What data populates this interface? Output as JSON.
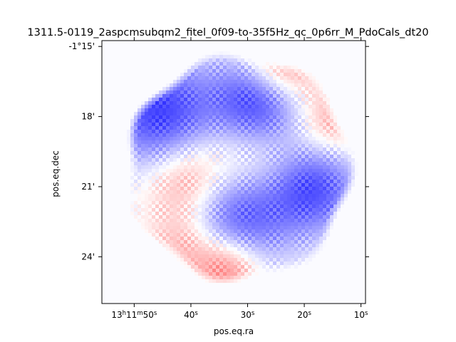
{
  "chart_data": {
    "type": "heatmap",
    "title": "1311.5-0119_2aspcmsubqm2_fitel_0f09-to-35f5Hz_qc_0p6rr_M_PdoCals_dt20",
    "xlabel": "pos.eq.ra",
    "ylabel": "pos.eq.dec",
    "x_ticks": [
      {
        "value": 50,
        "label_parts": [
          "13",
          "h",
          "11",
          "m",
          "50",
          "s"
        ]
      },
      {
        "value": 40,
        "label_parts": [
          "",
          "",
          "",
          "",
          "40",
          "s"
        ]
      },
      {
        "value": 30,
        "label_parts": [
          "",
          "",
          "",
          "",
          "30",
          "s"
        ]
      },
      {
        "value": 20,
        "label_parts": [
          "",
          "",
          "",
          "",
          "20",
          "s"
        ]
      },
      {
        "value": 10,
        "label_parts": [
          "",
          "",
          "",
          "",
          "10",
          "s"
        ]
      }
    ],
    "x_range_seconds": [
      55.7,
      9.2
    ],
    "y_ticks": [
      {
        "value": -15,
        "label": "-1°15'"
      },
      {
        "value": -18,
        "label": "18'"
      },
      {
        "value": -21,
        "label": "21'"
      },
      {
        "value": -24,
        "label": "24'"
      }
    ],
    "y_range_arcmin": [
      -14.75,
      -26.0
    ],
    "colormap": "bwr",
    "colors": {
      "positive": "#ff0000",
      "negative": "#0000ff",
      "background": "#fbfbff"
    },
    "blobs": [
      {
        "ra": 28.0,
        "dec": -17.4,
        "sign": -1,
        "strength": 0.85,
        "radius": 2.0
      },
      {
        "ra": 45.5,
        "dec": -17.9,
        "sign": -1,
        "strength": 0.75,
        "radius": 2.4
      },
      {
        "ra": 32.0,
        "dec": -22.0,
        "sign": -1,
        "strength": 0.8,
        "radius": 2.4
      },
      {
        "ra": 18.5,
        "dec": -21.0,
        "sign": -1,
        "strength": 0.7,
        "radius": 2.0
      },
      {
        "ra": 29.0,
        "dec": -20.0,
        "sign": 1,
        "strength": 0.45,
        "radius": 2.4
      },
      {
        "ra": 24.0,
        "dec": -15.9,
        "sign": 1,
        "strength": 0.6,
        "radius": 1.6
      },
      {
        "ra": 40.5,
        "dec": -20.8,
        "sign": 1,
        "strength": 0.5,
        "radius": 1.8
      },
      {
        "ra": 33.5,
        "dec": -24.5,
        "sign": 1,
        "strength": 0.55,
        "radius": 1.4
      },
      {
        "ra": 15.0,
        "dec": -18.2,
        "sign": 1,
        "strength": 0.35,
        "radius": 1.5
      },
      {
        "ra": 41.0,
        "dec": -23.5,
        "sign": 1,
        "strength": 0.35,
        "radius": 1.5
      }
    ],
    "footprint": {
      "ra": 31.5,
      "dec": -20.2,
      "radius_arcmin": 4.9
    }
  }
}
